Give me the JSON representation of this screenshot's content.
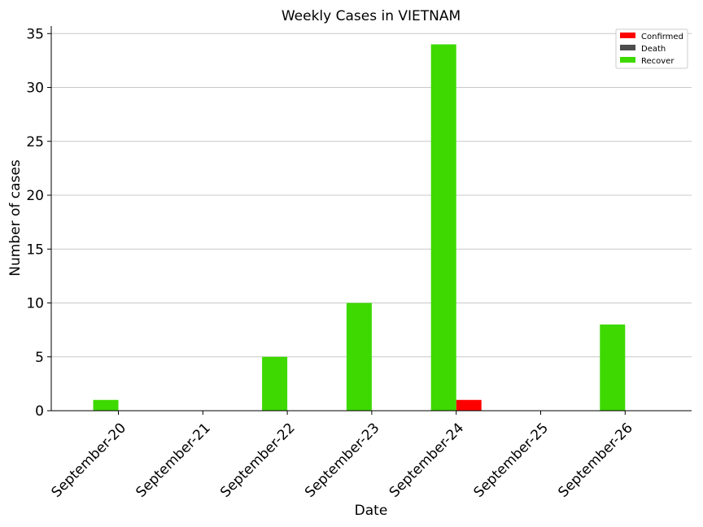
{
  "chart_data": {
    "type": "bar",
    "title": "Weekly Cases in VIETNAM",
    "xlabel": "Date",
    "ylabel": "Number of cases",
    "categories": [
      "September-20",
      "September-21",
      "September-22",
      "September-23",
      "September-24",
      "September-25",
      "September-26"
    ],
    "series": [
      {
        "name": "Confirmed",
        "color": "#ff0000",
        "values": [
          0,
          0,
          0,
          0,
          1,
          0,
          0
        ]
      },
      {
        "name": "Death",
        "color": "#4d4d4d",
        "values": [
          0,
          0,
          0,
          0,
          0,
          0,
          0
        ]
      },
      {
        "name": "Recover",
        "color": "#3dd900",
        "values": [
          1,
          0,
          5,
          10,
          34,
          0,
          8
        ]
      }
    ],
    "ylim": [
      0,
      35.7
    ],
    "yticks": [
      0,
      5,
      10,
      15,
      20,
      25,
      30,
      35
    ],
    "grid": "horizontal",
    "legend_position": "top-right"
  }
}
